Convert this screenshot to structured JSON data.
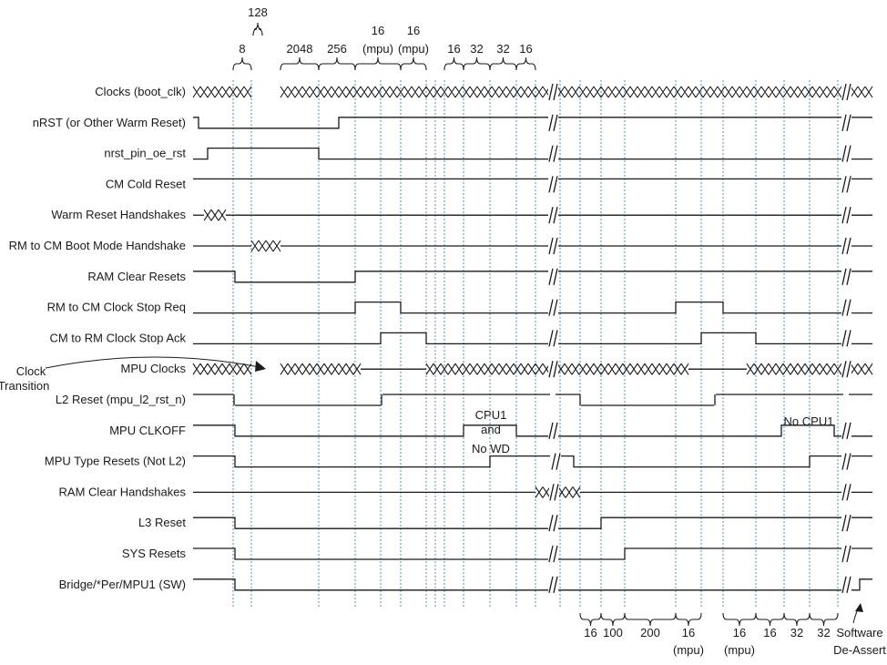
{
  "signals": [
    "Clocks (boot_clk)",
    "nRST (or Other Warm Reset)",
    "nrst_pin_oe_rst",
    "CM Cold Reset",
    "Warm Reset Handshakes",
    "RM to CM Boot Mode Handshake",
    "RAM Clear Resets",
    "RM to CM Clock Stop Req",
    "CM to RM Clock Stop Ack",
    "MPU Clocks",
    "L2 Reset (mpu_l2_rst_n)",
    "MPU CLKOFF",
    "MPU Type Resets (Not L2)",
    "RAM Clear Handshakes",
    "L3 Reset",
    "SYS Resets",
    "Bridge/*Per/MPU1 (SW)"
  ],
  "top_intervals": [
    {
      "label": "8",
      "label2": ""
    },
    {
      "label": "128",
      "label2": ""
    },
    {
      "label": "2048",
      "label2": ""
    },
    {
      "label": "256",
      "label2": ""
    },
    {
      "label": "16",
      "label2": "(mpu)"
    },
    {
      "label": "16",
      "label2": "(mpu)"
    },
    {
      "label": "16",
      "label2": ""
    },
    {
      "label": "32",
      "label2": ""
    },
    {
      "label": "32",
      "label2": ""
    },
    {
      "label": "16",
      "label2": ""
    }
  ],
  "bottom_intervals": [
    {
      "label": "16",
      "label2": ""
    },
    {
      "label": "100",
      "label2": ""
    },
    {
      "label": "200",
      "label2": ""
    },
    {
      "label": "16",
      "label2": "(mpu)"
    },
    {
      "label": "16",
      "label2": "(mpu)"
    },
    {
      "label": "16",
      "label2": ""
    },
    {
      "label": "32",
      "label2": ""
    },
    {
      "label": "32",
      "label2": ""
    }
  ],
  "annotations": {
    "clock_transition_line1": "Clock",
    "clock_transition_line2": "Transition",
    "cpu1_line1": "CPU1",
    "cpu1_line2": "and",
    "cpu1_line3": "No WD",
    "no_cpu1": "No CPU1",
    "software_line1": "Software",
    "software_line2": "De-Assert"
  },
  "colors": {
    "waveform": "#1a1a1a",
    "guide": "#4a90c8"
  }
}
